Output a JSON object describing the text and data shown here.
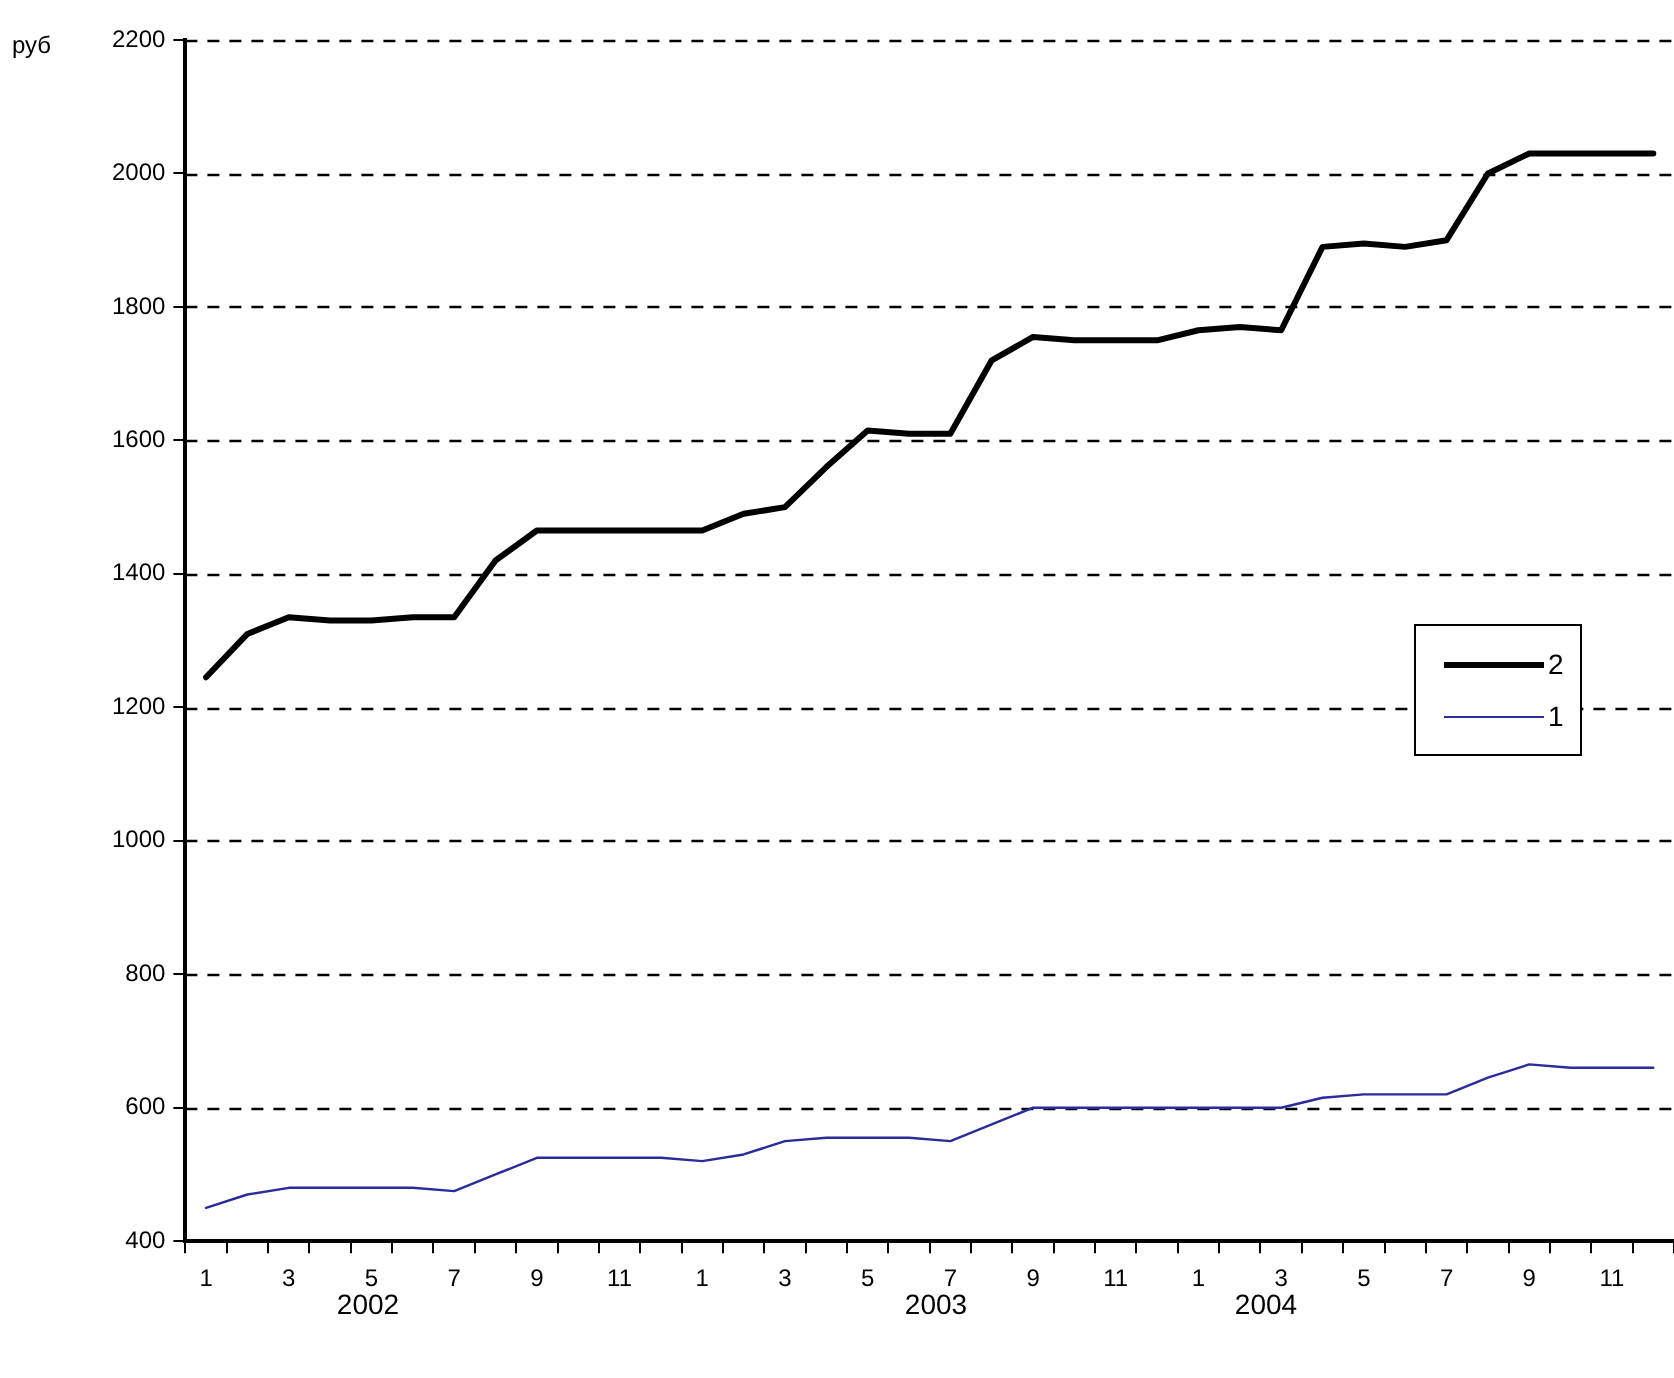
{
  "chart_data": {
    "type": "line",
    "ylabel": "руб",
    "categories": [
      "1",
      null,
      "3",
      null,
      "5",
      null,
      "7",
      null,
      "9",
      null,
      "11",
      null,
      "1",
      null,
      "3",
      null,
      "5",
      null,
      "7",
      null,
      "9",
      null,
      "11",
      null,
      "1",
      null,
      "3",
      null,
      "5",
      null,
      "7",
      null,
      "9",
      null,
      "11",
      null
    ],
    "series": [
      {
        "name": "2",
        "color": "#000000",
        "values": [
          1245,
          1310,
          1335,
          1330,
          1330,
          1335,
          1335,
          1420,
          1465,
          1465,
          1465,
          1465,
          1465,
          1490,
          1500,
          1560,
          1615,
          1610,
          1610,
          1720,
          1755,
          1750,
          1750,
          1750,
          1765,
          1770,
          1765,
          1890,
          1895,
          1890,
          1900,
          2000,
          2030,
          2030,
          2030,
          2030
        ]
      },
      {
        "name": "1",
        "color": "#2b2b9b",
        "values": [
          450,
          470,
          480,
          480,
          480,
          480,
          475,
          500,
          525,
          525,
          525,
          525,
          520,
          530,
          550,
          555,
          555,
          555,
          550,
          575,
          600,
          600,
          600,
          600,
          600,
          600,
          600,
          615,
          620,
          620,
          620,
          645,
          665,
          660,
          660,
          660
        ]
      }
    ],
    "ylim": [
      400,
      2200
    ],
    "yticks": [
      400,
      600,
      800,
      1000,
      1200,
      1400,
      1600,
      1800,
      2000,
      2200
    ],
    "grid": "y",
    "legend": "right",
    "marker": "none",
    "line_style": "solid",
    "annotations": [
      "2002",
      "2003",
      "2004"
    ]
  }
}
